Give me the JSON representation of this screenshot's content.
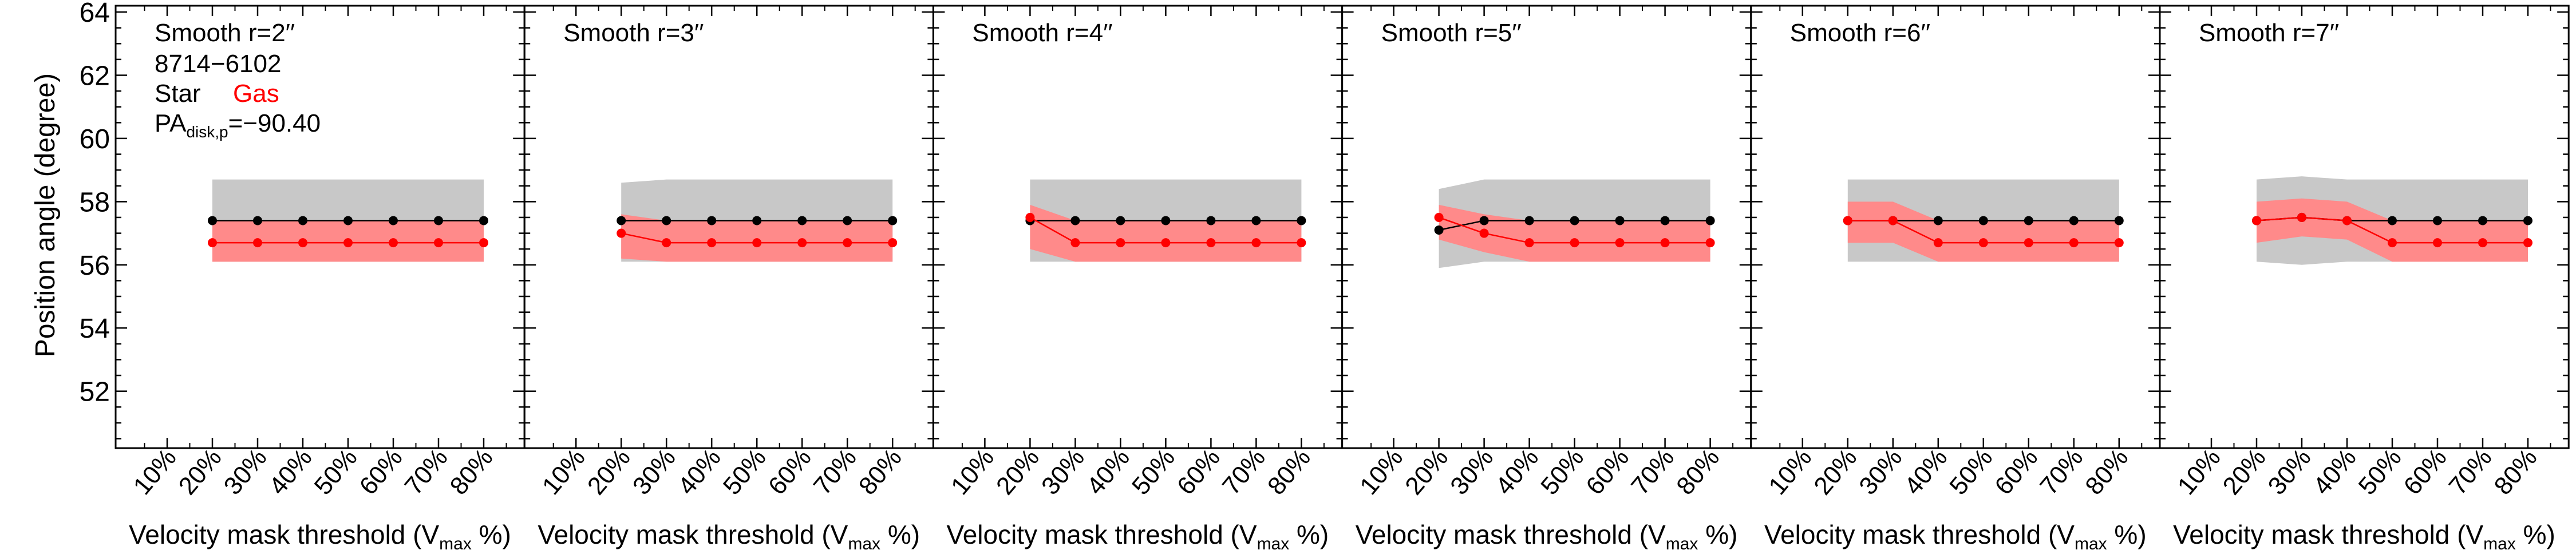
{
  "figure": {
    "ylabel": "Position angle (degree)",
    "xlabel_main": "Velocity mask threshold (V",
    "xlabel_sub": "max",
    "xlabel_tail": " %)",
    "info": {
      "id": "8714−6102",
      "star_label": "Star",
      "gas_label": "Gas",
      "pa_main": "PA",
      "pa_sub": "disk,p",
      "pa_value": "=−90.40"
    }
  },
  "colors": {
    "star": "#000000",
    "gas": "#ff0000",
    "gas_band": "#ff8a8a",
    "star_band": "#c8c8c8"
  },
  "chart_data": [
    {
      "type": "line",
      "title": "Smooth r=2′′",
      "x": [
        "10%",
        "20%",
        "30%",
        "40%",
        "50%",
        "60%",
        "70%",
        "80%"
      ],
      "ylim": [
        50.2,
        64.2
      ],
      "yticks": [
        52,
        54,
        56,
        58,
        60,
        62,
        64
      ],
      "series": [
        {
          "name": "Star",
          "x": [
            "20%",
            "30%",
            "40%",
            "50%",
            "60%",
            "70%",
            "80%"
          ],
          "values": [
            57.4,
            57.4,
            57.4,
            57.4,
            57.4,
            57.4,
            57.4
          ],
          "band_low": [
            56.1,
            56.1,
            56.1,
            56.1,
            56.1,
            56.1,
            56.1
          ],
          "band_high": [
            58.7,
            58.7,
            58.7,
            58.7,
            58.7,
            58.7,
            58.7
          ]
        },
        {
          "name": "Gas",
          "x": [
            "20%",
            "30%",
            "40%",
            "50%",
            "60%",
            "70%",
            "80%"
          ],
          "values": [
            56.7,
            56.7,
            56.7,
            56.7,
            56.7,
            56.7,
            56.7
          ],
          "band_low": [
            56.1,
            56.1,
            56.1,
            56.1,
            56.1,
            56.1,
            56.1
          ],
          "band_high": [
            57.4,
            57.4,
            57.4,
            57.4,
            57.4,
            57.4,
            57.4
          ]
        }
      ]
    },
    {
      "type": "line",
      "title": "Smooth r=3′′",
      "x": [
        "10%",
        "20%",
        "30%",
        "40%",
        "50%",
        "60%",
        "70%",
        "80%"
      ],
      "ylim": [
        50.2,
        64.2
      ],
      "yticks": [
        52,
        54,
        56,
        58,
        60,
        62,
        64
      ],
      "series": [
        {
          "name": "Star",
          "x": [
            "20%",
            "30%",
            "40%",
            "50%",
            "60%",
            "70%",
            "80%"
          ],
          "values": [
            57.4,
            57.4,
            57.4,
            57.4,
            57.4,
            57.4,
            57.4
          ],
          "band_low": [
            56.1,
            56.1,
            56.1,
            56.1,
            56.1,
            56.1,
            56.1
          ],
          "band_high": [
            58.6,
            58.7,
            58.7,
            58.7,
            58.7,
            58.7,
            58.7
          ]
        },
        {
          "name": "Gas",
          "x": [
            "20%",
            "30%",
            "40%",
            "50%",
            "60%",
            "70%",
            "80%"
          ],
          "values": [
            57.0,
            56.7,
            56.7,
            56.7,
            56.7,
            56.7,
            56.7
          ],
          "band_low": [
            56.2,
            56.1,
            56.1,
            56.1,
            56.1,
            56.1,
            56.1
          ],
          "band_high": [
            57.6,
            57.4,
            57.4,
            57.4,
            57.4,
            57.4,
            57.4
          ]
        }
      ]
    },
    {
      "type": "line",
      "title": "Smooth r=4′′",
      "x": [
        "10%",
        "20%",
        "30%",
        "40%",
        "50%",
        "60%",
        "70%",
        "80%"
      ],
      "ylim": [
        50.2,
        64.2
      ],
      "yticks": [
        52,
        54,
        56,
        58,
        60,
        62,
        64
      ],
      "series": [
        {
          "name": "Star",
          "x": [
            "20%",
            "30%",
            "40%",
            "50%",
            "60%",
            "70%",
            "80%"
          ],
          "values": [
            57.4,
            57.4,
            57.4,
            57.4,
            57.4,
            57.4,
            57.4
          ],
          "band_low": [
            56.1,
            56.1,
            56.1,
            56.1,
            56.1,
            56.1,
            56.1
          ],
          "band_high": [
            58.7,
            58.7,
            58.7,
            58.7,
            58.7,
            58.7,
            58.7
          ]
        },
        {
          "name": "Gas",
          "x": [
            "20%",
            "30%",
            "40%",
            "50%",
            "60%",
            "70%",
            "80%"
          ],
          "values": [
            57.5,
            56.7,
            56.7,
            56.7,
            56.7,
            56.7,
            56.7
          ],
          "band_low": [
            56.5,
            56.1,
            56.1,
            56.1,
            56.1,
            56.1,
            56.1
          ],
          "band_high": [
            57.9,
            57.4,
            57.4,
            57.4,
            57.4,
            57.4,
            57.4
          ]
        }
      ]
    },
    {
      "type": "line",
      "title": "Smooth r=5′′",
      "x": [
        "10%",
        "20%",
        "30%",
        "40%",
        "50%",
        "60%",
        "70%",
        "80%"
      ],
      "ylim": [
        50.2,
        64.2
      ],
      "yticks": [
        52,
        54,
        56,
        58,
        60,
        62,
        64
      ],
      "series": [
        {
          "name": "Star",
          "x": [
            "20%",
            "30%",
            "40%",
            "50%",
            "60%",
            "70%",
            "80%"
          ],
          "values": [
            57.1,
            57.4,
            57.4,
            57.4,
            57.4,
            57.4,
            57.4
          ],
          "band_low": [
            55.9,
            56.1,
            56.1,
            56.1,
            56.1,
            56.1,
            56.1
          ],
          "band_high": [
            58.4,
            58.7,
            58.7,
            58.7,
            58.7,
            58.7,
            58.7
          ]
        },
        {
          "name": "Gas",
          "x": [
            "20%",
            "30%",
            "40%",
            "50%",
            "60%",
            "70%",
            "80%"
          ],
          "values": [
            57.5,
            57.0,
            56.7,
            56.7,
            56.7,
            56.7,
            56.7
          ],
          "band_low": [
            56.8,
            56.4,
            56.1,
            56.1,
            56.1,
            56.1,
            56.1
          ],
          "band_high": [
            57.9,
            57.6,
            57.4,
            57.4,
            57.4,
            57.4,
            57.4
          ]
        }
      ]
    },
    {
      "type": "line",
      "title": "Smooth r=6′′",
      "x": [
        "10%",
        "20%",
        "30%",
        "40%",
        "50%",
        "60%",
        "70%",
        "80%"
      ],
      "ylim": [
        50.2,
        64.2
      ],
      "yticks": [
        52,
        54,
        56,
        58,
        60,
        62,
        64
      ],
      "series": [
        {
          "name": "Star",
          "x": [
            "20%",
            "30%",
            "40%",
            "50%",
            "60%",
            "70%",
            "80%"
          ],
          "values": [
            57.4,
            57.4,
            57.4,
            57.4,
            57.4,
            57.4,
            57.4
          ],
          "band_low": [
            56.1,
            56.1,
            56.1,
            56.1,
            56.1,
            56.1,
            56.1
          ],
          "band_high": [
            58.7,
            58.7,
            58.7,
            58.7,
            58.7,
            58.7,
            58.7
          ]
        },
        {
          "name": "Gas",
          "x": [
            "20%",
            "30%",
            "40%",
            "50%",
            "60%",
            "70%",
            "80%"
          ],
          "values": [
            57.4,
            57.4,
            56.7,
            56.7,
            56.7,
            56.7,
            56.7
          ],
          "band_low": [
            56.7,
            56.7,
            56.1,
            56.1,
            56.1,
            56.1,
            56.1
          ],
          "band_high": [
            58.0,
            58.0,
            57.4,
            57.4,
            57.4,
            57.4,
            57.4
          ]
        }
      ]
    },
    {
      "type": "line",
      "title": "Smooth r=7′′",
      "x": [
        "10%",
        "20%",
        "30%",
        "40%",
        "50%",
        "60%",
        "70%",
        "80%"
      ],
      "ylim": [
        50.2,
        64.2
      ],
      "yticks": [
        52,
        54,
        56,
        58,
        60,
        62,
        64
      ],
      "series": [
        {
          "name": "Star",
          "x": [
            "20%",
            "30%",
            "40%",
            "50%",
            "60%",
            "70%",
            "80%"
          ],
          "values": [
            57.4,
            57.5,
            57.4,
            57.4,
            57.4,
            57.4,
            57.4
          ],
          "band_low": [
            56.1,
            56.0,
            56.1,
            56.1,
            56.1,
            56.1,
            56.1
          ],
          "band_high": [
            58.7,
            58.8,
            58.7,
            58.7,
            58.7,
            58.7,
            58.7
          ]
        },
        {
          "name": "Gas",
          "x": [
            "20%",
            "30%",
            "40%",
            "50%",
            "60%",
            "70%",
            "80%"
          ],
          "values": [
            57.4,
            57.5,
            57.4,
            56.7,
            56.7,
            56.7,
            56.7
          ],
          "band_low": [
            56.7,
            56.9,
            56.8,
            56.1,
            56.1,
            56.1,
            56.1
          ],
          "band_high": [
            58.0,
            58.1,
            58.0,
            57.4,
            57.4,
            57.4,
            57.4
          ]
        }
      ]
    }
  ]
}
